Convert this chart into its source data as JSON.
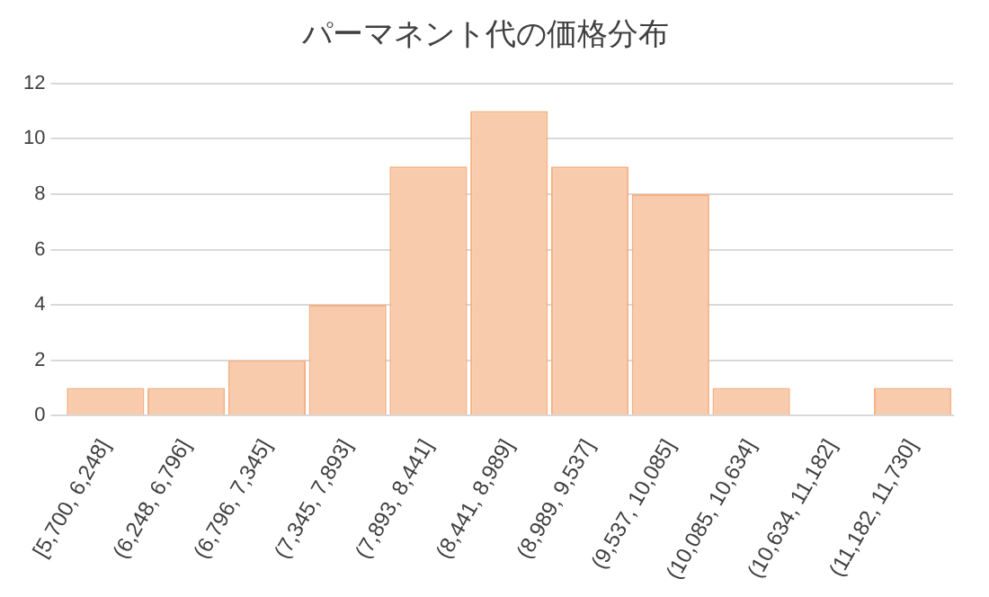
{
  "chart_data": {
    "type": "bar",
    "title": "パーマネント代の価格分布",
    "categories": [
      "[5,700, 6,248]",
      "(6,248, 6,796]",
      "(6,796, 7,345]",
      "(7,345, 7,893]",
      "(7,893, 8,441]",
      "(8,441, 8,989]",
      "(8,989, 9,537]",
      "(9,537, 10,085]",
      "(10,085, 10,634]",
      "(10,634, 11,182]",
      "(11,182, 11,730]"
    ],
    "values": [
      1,
      1,
      2,
      4,
      9,
      11,
      9,
      8,
      1,
      0,
      1
    ],
    "color": "#f8cbad",
    "ylim": [
      0,
      12
    ],
    "yticks": [
      0,
      2,
      4,
      6,
      8,
      10,
      12
    ],
    "grid": "y",
    "legend": false
  }
}
